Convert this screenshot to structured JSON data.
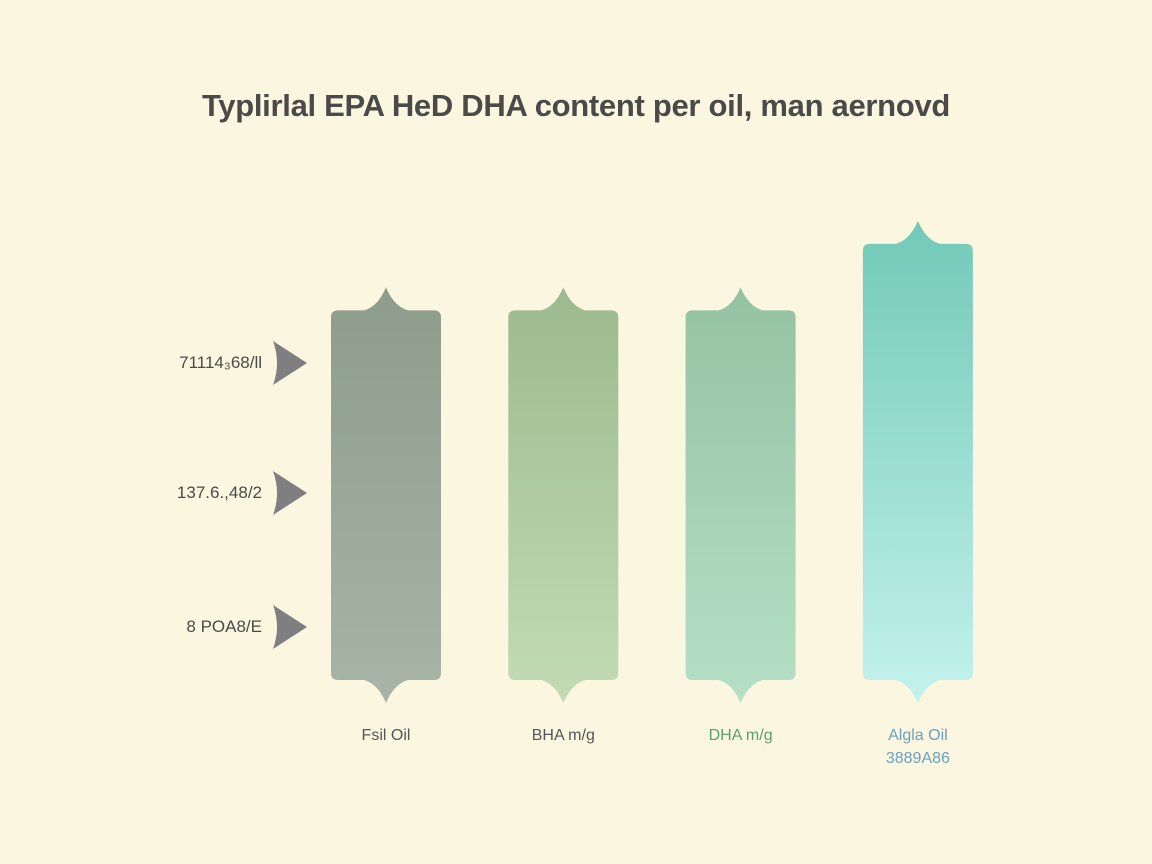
{
  "chart_data": {
    "type": "bar",
    "title": "Typlirlal EPA HeD DHA content per oil, man aernovd",
    "y_tick_labels": [
      "71114₃68/ll",
      "137.6.,48/2",
      "8 POA8/E"
    ],
    "categories": [
      "Fsil Oil",
      "BHA m/g",
      "DHA m/g",
      "Algla Oil"
    ],
    "category_sublabels": [
      "",
      "",
      "",
      "3889A86"
    ],
    "values": [
      100,
      100,
      100,
      118
    ],
    "ylim": [
      0,
      125
    ],
    "grid": false,
    "legend": "none",
    "colors": {
      "bars_top": [
        "#8e9c8c",
        "#9cba8d",
        "#94c2a2",
        "#72c9b8"
      ],
      "bars_bottom": [
        "#a7b4a6",
        "#c2dbb5",
        "#b5e0c6",
        "#c4f2ee"
      ],
      "category_text": [
        "#555555",
        "#555555",
        "#5aa070",
        "#6ba0c2"
      ],
      "tick_marker": "#7f7f82"
    }
  }
}
